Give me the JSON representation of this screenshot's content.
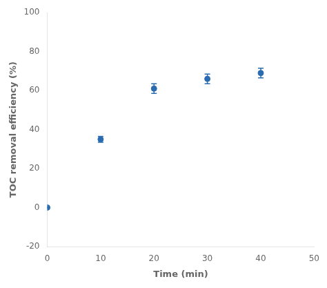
{
  "chart_data": {
    "type": "scatter",
    "x": [
      0,
      10,
      20,
      30,
      40
    ],
    "values": [
      0,
      35,
      61,
      66,
      69
    ],
    "yerr": [
      0.3,
      1.5,
      2.5,
      2.5,
      2.5
    ],
    "xlabel": "Time (min)",
    "ylabel": "TOC removal efficiency (%)",
    "xlim": [
      0,
      50
    ],
    "ylim": [
      -20,
      100
    ],
    "xticks": [
      0,
      10,
      20,
      30,
      40,
      50
    ],
    "yticks": [
      -20,
      0,
      20,
      40,
      60,
      80,
      100
    ],
    "color": "#2b6cb0",
    "marker": "circle",
    "grid": false
  }
}
